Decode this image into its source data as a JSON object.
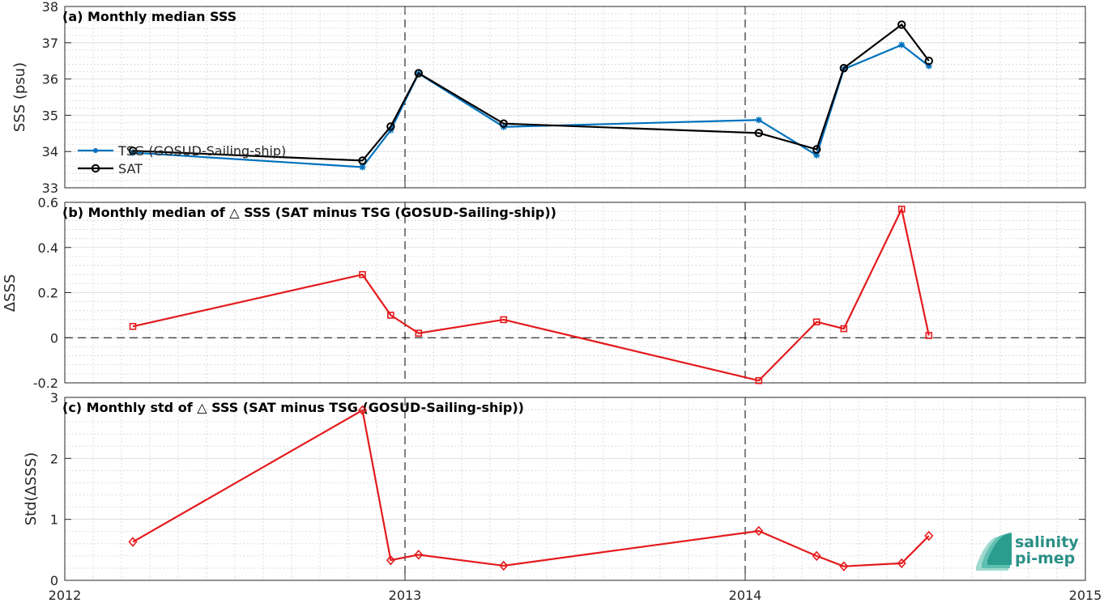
{
  "chart_data": [
    {
      "type": "line",
      "title": "(a) Monthly median SSS",
      "ylabel": "SSS (psu)",
      "xlabel": "",
      "ylim": [
        33,
        38
      ],
      "yticks": [
        33,
        34,
        35,
        36,
        37,
        38
      ],
      "xlim": [
        2012,
        2015
      ],
      "xticks": [
        2012,
        2013,
        2014,
        2015
      ],
      "grid": true,
      "legend_position": "left",
      "series": [
        {
          "name": "TSG (GOSUD-Sailing-ship)",
          "color": "#0072bd",
          "marker": "asterisk",
          "x": [
            2012.2,
            2012.875,
            2012.958,
            2013.04,
            2013.29,
            2014.04,
            2014.21,
            2014.29,
            2014.46,
            2014.54
          ],
          "y": [
            33.97,
            33.57,
            34.59,
            36.15,
            34.68,
            34.87,
            33.9,
            36.27,
            36.94,
            36.36
          ]
        },
        {
          "name": "SAT",
          "color": "#000000",
          "marker": "circle",
          "x": [
            2012.2,
            2012.875,
            2012.958,
            2013.04,
            2013.29,
            2014.04,
            2014.21,
            2014.29,
            2014.46,
            2014.54
          ],
          "y": [
            34.02,
            33.75,
            34.69,
            36.16,
            34.77,
            34.51,
            34.06,
            36.3,
            37.5,
            36.5
          ]
        }
      ]
    },
    {
      "type": "line",
      "title": "(b) Monthly median of △ SSS (SAT minus TSG (GOSUD-Sailing-ship))",
      "ylabel": "ΔSSS",
      "xlabel": "",
      "ylim": [
        -0.2,
        0.6
      ],
      "yticks": [
        -0.2,
        0,
        0.2,
        0.4,
        0.6
      ],
      "ytick_labels": [
        "-0.2",
        "0",
        "0.2",
        "0.4",
        "0.6"
      ],
      "xlim": [
        2012,
        2015
      ],
      "grid": true,
      "reference_line": 0,
      "series": [
        {
          "color": "#e41a1c",
          "marker": "square",
          "x": [
            2012.2,
            2012.875,
            2012.958,
            2013.04,
            2013.29,
            2014.04,
            2014.21,
            2014.29,
            2014.46,
            2014.54
          ],
          "y": [
            0.05,
            0.28,
            0.1,
            0.02,
            0.08,
            -0.19,
            0.07,
            0.04,
            0.57,
            0.01
          ]
        }
      ]
    },
    {
      "type": "line",
      "title": "(c) Monthly std of △ SSS (SAT minus TSG (GOSUD-Sailing-ship))",
      "ylabel": "Std(ΔSSS)",
      "xlabel": "",
      "ylim": [
        0,
        3
      ],
      "yticks": [
        0,
        1,
        2,
        3
      ],
      "xlim": [
        2012,
        2015
      ],
      "xticks": [
        2012,
        2013,
        2014,
        2015
      ],
      "grid": true,
      "series": [
        {
          "color": "#e41a1c",
          "marker": "diamond",
          "x": [
            2012.2,
            2012.875,
            2012.958,
            2013.04,
            2013.29,
            2014.04,
            2014.21,
            2014.29,
            2014.46,
            2014.54
          ],
          "y": [
            0.63,
            2.79,
            0.33,
            0.42,
            0.24,
            0.81,
            0.4,
            0.23,
            0.28,
            0.73
          ]
        }
      ]
    }
  ],
  "logo": {
    "line1": "salinity",
    "line2": "pi-mep"
  }
}
